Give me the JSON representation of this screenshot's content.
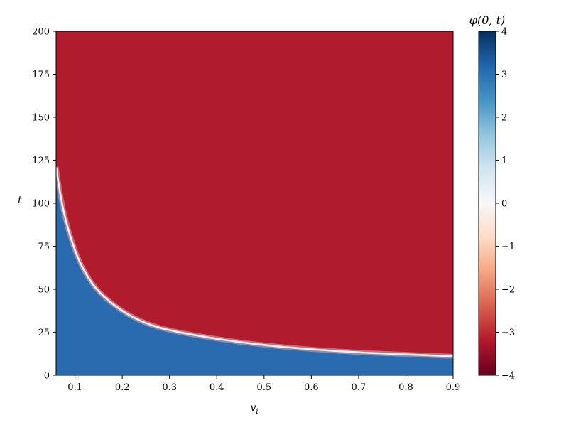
{
  "chart_data": {
    "type": "heatmap",
    "title": "",
    "xlabel": "v_i",
    "ylabel": "t",
    "xlim": [
      0.06,
      0.9
    ],
    "ylim": [
      0,
      200
    ],
    "xticks": [
      0.1,
      0.2,
      0.3,
      0.4,
      0.5,
      0.6,
      0.7,
      0.8,
      0.9
    ],
    "xtick_labels": [
      "0.1",
      "0.2",
      "0.3",
      "0.4",
      "0.5",
      "0.6",
      "0.7",
      "0.8",
      "0.9"
    ],
    "yticks": [
      0,
      25,
      50,
      75,
      100,
      125,
      150,
      175,
      200
    ],
    "ytick_labels": [
      "0",
      "25",
      "50",
      "75",
      "100",
      "125",
      "150",
      "175",
      "200"
    ],
    "colorbar": {
      "label": "φ(0, t)",
      "colormap": "RdBu",
      "vmin": -4,
      "vmax": 4,
      "ticks": [
        4,
        3,
        2,
        1,
        0,
        -1,
        -2,
        -3,
        -4
      ],
      "tick_labels": [
        "4",
        "3",
        "2",
        "1",
        "0",
        "−1",
        "−2",
        "−3",
        "−4"
      ]
    },
    "regions": [
      {
        "description": "below transition curve",
        "value": 3.14
      },
      {
        "description": "above transition curve",
        "value": -3.14
      }
    ],
    "transition_curve": {
      "v": [
        0.06,
        0.07,
        0.08,
        0.1,
        0.12,
        0.15,
        0.2,
        0.25,
        0.3,
        0.4,
        0.5,
        0.6,
        0.7,
        0.8,
        0.9
      ],
      "t": [
        121,
        103,
        90,
        72,
        60,
        48,
        37,
        30,
        26,
        21,
        17.5,
        15,
        13.3,
        12.1,
        11
      ]
    },
    "colors": {
      "positive_region": "#2a6aaf",
      "negative_region": "#b01c2e",
      "transition": "#f2f2f2"
    }
  }
}
